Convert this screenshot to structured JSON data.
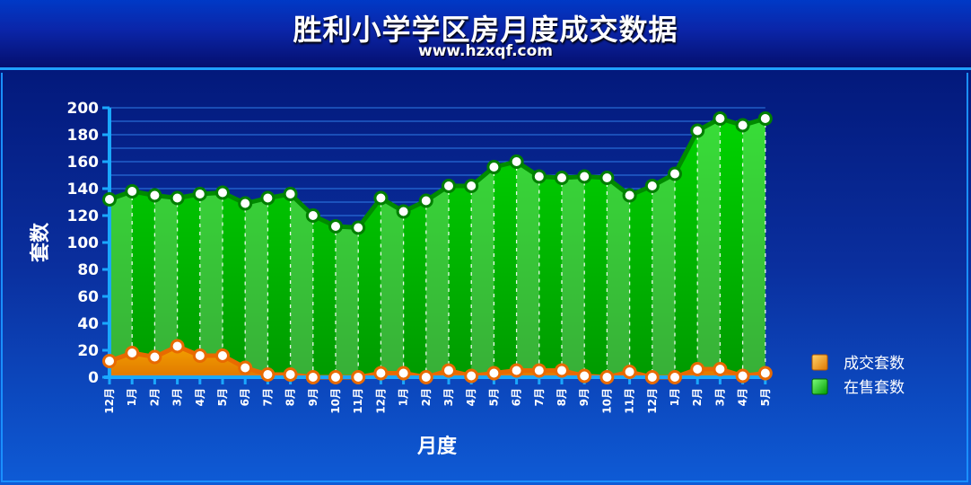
{
  "header": {
    "title": "胜利小学学区房月度成交数据",
    "subtitle": "www.hzxqf.com"
  },
  "colors": {
    "sold": "#f08a00",
    "for_sale": "#00c800"
  },
  "chart_data": {
    "type": "area",
    "xlabel": "月度",
    "ylabel": "套数",
    "ylim": [
      0,
      200
    ],
    "yticks": [
      0,
      20,
      40,
      60,
      80,
      100,
      120,
      140,
      160,
      180,
      200
    ],
    "grid": true,
    "legend_position": "right",
    "categories": [
      "12月",
      "1月",
      "2月",
      "3月",
      "4月",
      "5月",
      "6月",
      "7月",
      "8月",
      "9月",
      "10月",
      "11月",
      "12月",
      "1月",
      "2月",
      "3月",
      "4月",
      "5月",
      "6月",
      "7月",
      "8月",
      "9月",
      "10月",
      "11月",
      "12月",
      "1月",
      "2月",
      "3月",
      "4月",
      "5月"
    ],
    "series": [
      {
        "name": "成交套数",
        "values": [
          12,
          18,
          15,
          23,
          16,
          16,
          7,
          2,
          2,
          0,
          0,
          0,
          3,
          3,
          0,
          5,
          1,
          3,
          5,
          5,
          5,
          1,
          0,
          4,
          0,
          0,
          6,
          6,
          1,
          3
        ]
      },
      {
        "name": "在售套数",
        "values": [
          132,
          138,
          135,
          133,
          136,
          137,
          129,
          133,
          136,
          120,
          112,
          111,
          133,
          123,
          131,
          142,
          142,
          156,
          160,
          149,
          148,
          149,
          148,
          135,
          142,
          151,
          183,
          192,
          187,
          192
        ]
      }
    ]
  }
}
